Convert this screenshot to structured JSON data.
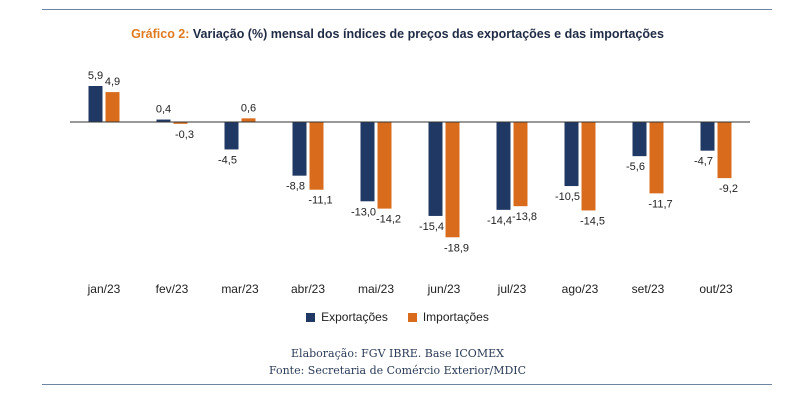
{
  "header": {
    "title_prefix": "Gráfico 2:",
    "title": "Variação (%) mensal dos índices de preços das exportações e das importações"
  },
  "colors": {
    "exportacoes": "#1f3864",
    "importacoes": "#d86c1c",
    "title_prefix": "#e07a1f",
    "rule": "#6d84a3"
  },
  "chart_data": {
    "type": "bar",
    "title": "Variação (%) mensal dos índices de preços das exportações e das importações",
    "categories": [
      "jan/23",
      "fev/23",
      "mar/23",
      "abr/23",
      "mai/23",
      "jun/23",
      "jul/23",
      "ago/23",
      "set/23",
      "out/23"
    ],
    "series": [
      {
        "name": "Exportações",
        "values": [
          5.9,
          0.4,
          -4.5,
          -8.8,
          -13.0,
          -15.4,
          -14.4,
          -10.5,
          -5.6,
          -4.7
        ],
        "labels": [
          "5,9",
          "0,4",
          "-4,5",
          "-8,8",
          "-13,0",
          "-15,4",
          "-14,4",
          "-10,5",
          "-5,6",
          "-4,7"
        ]
      },
      {
        "name": "Importações",
        "values": [
          4.9,
          -0.3,
          0.6,
          -11.1,
          -14.2,
          -18.9,
          -13.8,
          -14.5,
          -11.7,
          -9.2
        ],
        "labels": [
          "4,9",
          "-0,3",
          "0,6",
          "-11,1",
          "-14,2",
          "-18,9",
          "-13,8",
          "-14,5",
          "-11,7",
          "-9,2"
        ]
      }
    ],
    "ylim": [
      -19,
      6
    ],
    "grid": false,
    "legend_position": "bottom"
  },
  "legend": [
    {
      "label": "Exportações"
    },
    {
      "label": "Importações"
    }
  ],
  "source": {
    "line1": "Elaboração: FGV IBRE. Base ICOMEX",
    "line2": "Fonte: Secretaria de Comércio Exterior/MDIC"
  }
}
